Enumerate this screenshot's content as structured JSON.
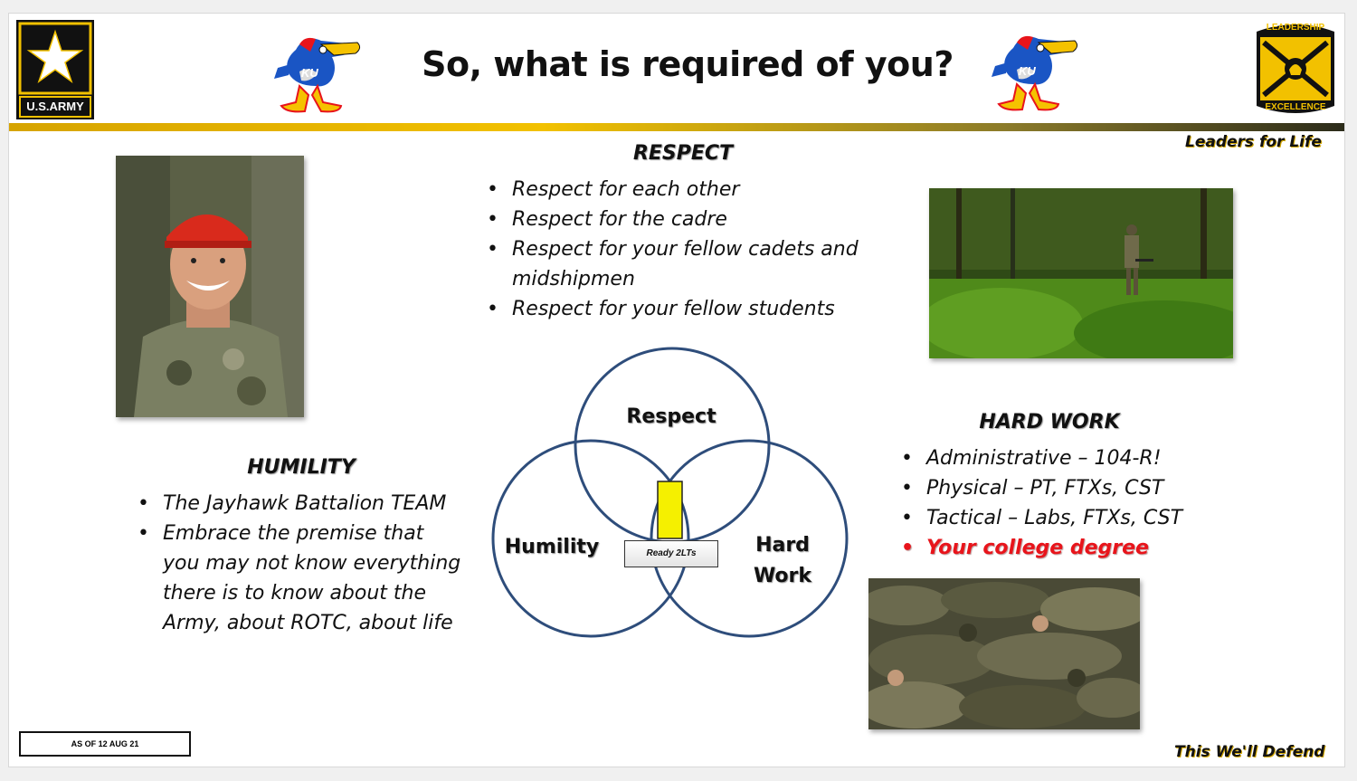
{
  "header": {
    "title": "So, what is required of you?",
    "army_logo_text": "U.S.ARMY",
    "ku_logo_text": "KU",
    "rotc_logo_top": "LEADERSHIP",
    "rotc_logo_bottom": "EXCELLENCE"
  },
  "mottos": {
    "top": "Leaders for Life",
    "bottom": "This We'll Defend"
  },
  "respect": {
    "heading": "RESPECT",
    "items": [
      "Respect for each other",
      "Respect for the cadre",
      "Respect for your fellow cadets and midshipmen",
      "Respect for your fellow students"
    ]
  },
  "humility": {
    "heading": "HUMILITY",
    "items": [
      "The Jayhawk Battalion TEAM",
      "Embrace the premise that you may not know everything there is to know about the Army, about ROTC, about life"
    ]
  },
  "hard_work": {
    "heading": "HARD WORK",
    "items": [
      "Administrative – 104-R!",
      "Physical – PT, FTXs, CST",
      "Tactical – Labs, FTXs, CST"
    ],
    "highlight_item": "Your college degree"
  },
  "venn": {
    "respect_label": "Respect",
    "humility_label": "Humility",
    "hard_work_label_1": "Hard",
    "hard_work_label_2": "Work",
    "center_label": "Ready 2LTs"
  },
  "footer": {
    "as_of": "AS OF 12 AUG 21"
  },
  "colors": {
    "accent_gold": "#f2c100",
    "circle_stroke": "#2e4d7b",
    "highlight_red": "#e8141b",
    "bar_yellow": "#f5f000"
  }
}
